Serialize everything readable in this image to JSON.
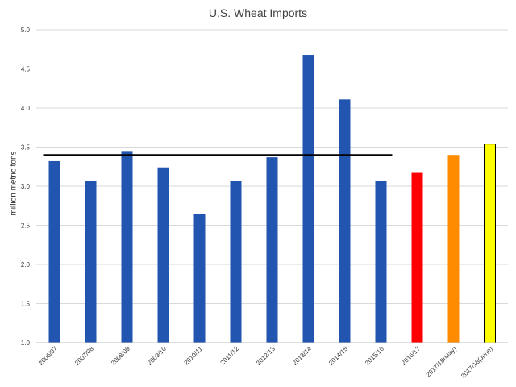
{
  "chart_data": {
    "type": "bar",
    "title": "U.S. Wheat Imports",
    "xlabel": "",
    "ylabel": "million metric tons",
    "ylim": [
      1.0,
      5.0
    ],
    "yticks": [
      "1.0",
      "1.5",
      "2.0",
      "2.5",
      "3.0",
      "3.5",
      "4.0",
      "4.5",
      "5.0"
    ],
    "grid": true,
    "categories": [
      "2006/07",
      "2007/08",
      "2008/09",
      "2009/10",
      "2010/11",
      "2011/12",
      "2012/13",
      "2013/14",
      "2014/15",
      "2015/16",
      "2016/17",
      "2017/18(May)",
      "2017/18(June)"
    ],
    "values": [
      3.32,
      3.07,
      3.45,
      3.24,
      2.64,
      3.07,
      3.37,
      4.68,
      4.11,
      3.07,
      3.18,
      3.4,
      3.54
    ],
    "bar_colors": [
      "#2255b0",
      "#2255b0",
      "#2255b0",
      "#2255b0",
      "#2255b0",
      "#2255b0",
      "#2255b0",
      "#2255b0",
      "#2255b0",
      "#2255b0",
      "#ff0000",
      "#ff8c00",
      "#ffff00"
    ],
    "average_line": {
      "value": 3.4,
      "from": "2006/07",
      "to": "2015/16",
      "color": "#000000"
    }
  }
}
